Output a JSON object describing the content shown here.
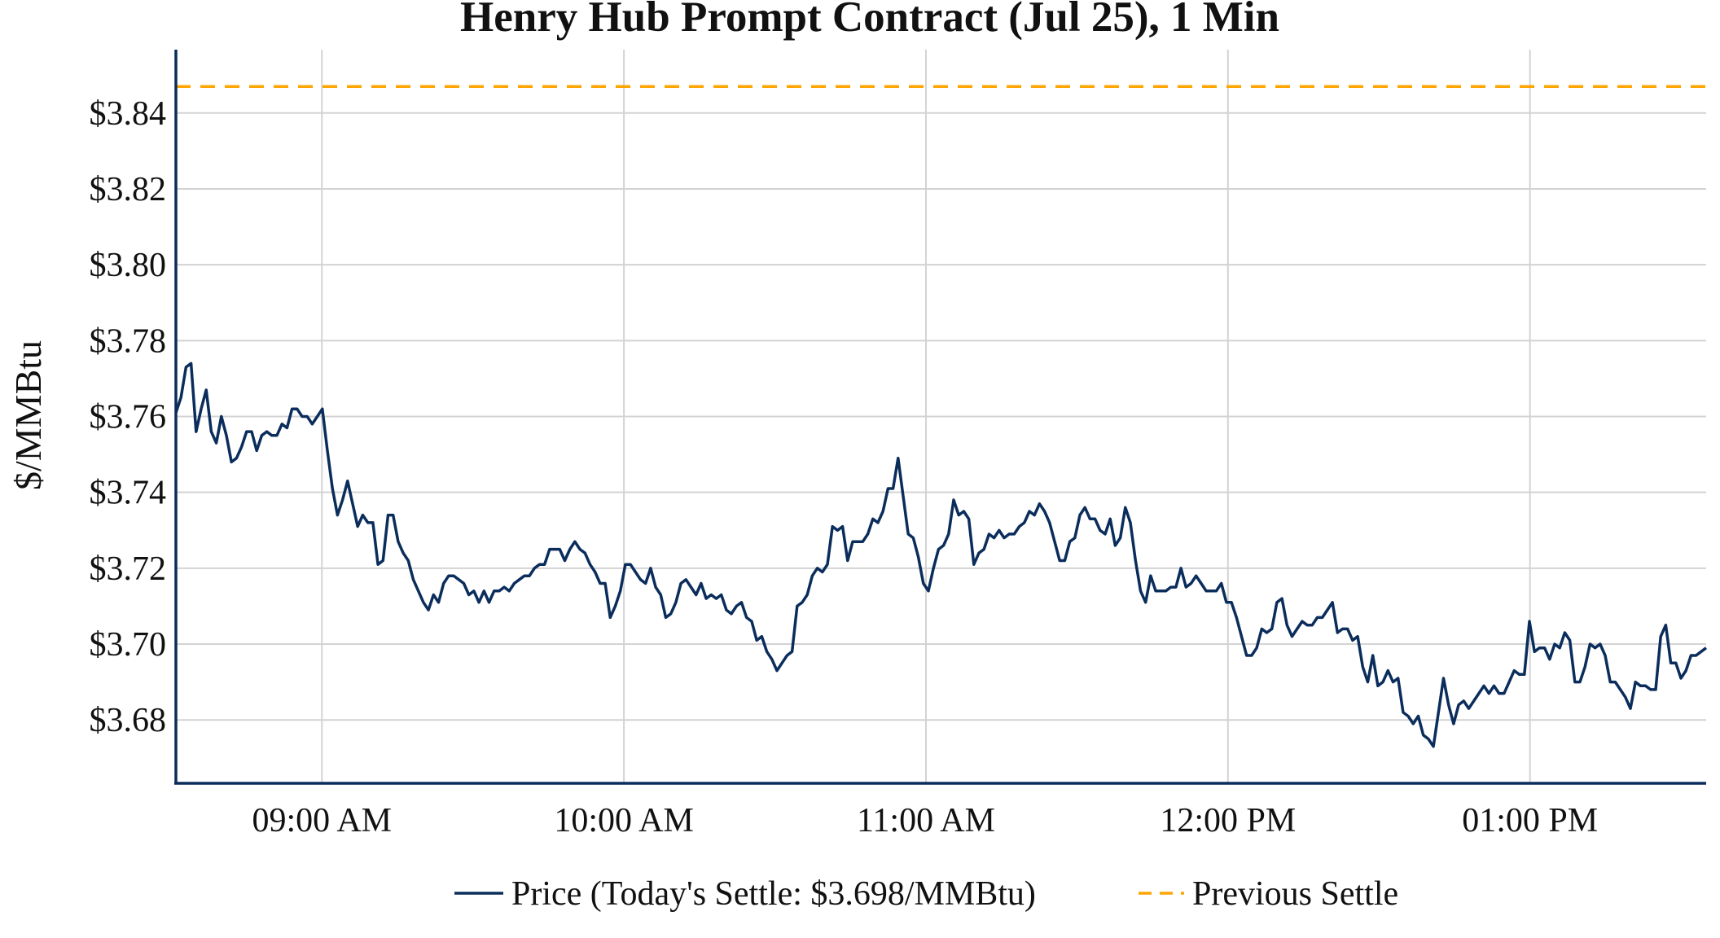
{
  "chart_data": {
    "type": "line",
    "title": "Henry Hub Prompt Contract (Jul 25), 1 Min",
    "xlabel": "",
    "ylabel": "$/MMBtu",
    "x_start": "08:31",
    "x_interval_minutes": 1,
    "xlim": [
      "08:31",
      "13:35"
    ],
    "ylim": [
      3.6633,
      3.8567
    ],
    "yticks": [
      3.68,
      3.7,
      3.72,
      3.74,
      3.76,
      3.78,
      3.8,
      3.82,
      3.84
    ],
    "ytick_labels": [
      "$3.68",
      "$3.70",
      "$3.72",
      "$3.74",
      "$3.76",
      "$3.78",
      "$3.80",
      "$3.82",
      "$3.84"
    ],
    "xticks": [
      "09:00",
      "10:00",
      "11:00",
      "12:00",
      "13:00"
    ],
    "xtick_labels": [
      "09:00 AM",
      "10:00 AM",
      "11:00 AM",
      "12:00 PM",
      "01:00 PM"
    ],
    "grid": true,
    "legend_position": "bottom",
    "series": [
      {
        "name": "Price (Today's Settle: $3.698/MMBtu)",
        "color": "#0b2d5c",
        "style": "solid",
        "values": [
          3.761,
          3.765,
          3.773,
          3.774,
          3.756,
          3.762,
          3.767,
          3.756,
          3.753,
          3.76,
          3.755,
          3.748,
          3.749,
          3.752,
          3.756,
          3.756,
          3.751,
          3.755,
          3.756,
          3.755,
          3.755,
          3.758,
          3.757,
          3.762,
          3.762,
          3.76,
          3.76,
          3.758,
          3.76,
          3.762,
          3.751,
          3.741,
          3.734,
          3.738,
          3.743,
          3.737,
          3.731,
          3.734,
          3.732,
          3.732,
          3.721,
          3.722,
          3.734,
          3.734,
          3.727,
          3.724,
          3.722,
          3.717,
          3.714,
          3.711,
          3.709,
          3.713,
          3.711,
          3.716,
          3.718,
          3.718,
          3.717,
          3.716,
          3.713,
          3.714,
          3.711,
          3.714,
          3.711,
          3.714,
          3.714,
          3.715,
          3.714,
          3.716,
          3.717,
          3.718,
          3.718,
          3.72,
          3.721,
          3.721,
          3.725,
          3.725,
          3.725,
          3.722,
          3.725,
          3.727,
          3.725,
          3.724,
          3.721,
          3.719,
          3.716,
          3.716,
          3.707,
          3.71,
          3.714,
          3.721,
          3.721,
          3.719,
          3.717,
          3.716,
          3.72,
          3.715,
          3.713,
          3.707,
          3.708,
          3.711,
          3.716,
          3.717,
          3.715,
          3.713,
          3.716,
          3.712,
          3.713,
          3.712,
          3.713,
          3.709,
          3.708,
          3.71,
          3.711,
          3.707,
          3.706,
          3.701,
          3.702,
          3.698,
          3.696,
          3.693,
          3.695,
          3.697,
          3.698,
          3.71,
          3.711,
          3.713,
          3.718,
          3.72,
          3.719,
          3.721,
          3.731,
          3.73,
          3.731,
          3.722,
          3.727,
          3.727,
          3.727,
          3.729,
          3.733,
          3.732,
          3.735,
          3.741,
          3.741,
          3.749,
          3.739,
          3.729,
          3.728,
          3.723,
          3.716,
          3.714,
          3.72,
          3.725,
          3.726,
          3.729,
          3.738,
          3.734,
          3.735,
          3.733,
          3.721,
          3.724,
          3.725,
          3.729,
          3.728,
          3.73,
          3.728,
          3.729,
          3.729,
          3.731,
          3.732,
          3.735,
          3.734,
          3.737,
          3.735,
          3.732,
          3.727,
          3.722,
          3.722,
          3.727,
          3.728,
          3.734,
          3.736,
          3.733,
          3.733,
          3.73,
          3.729,
          3.733,
          3.726,
          3.728,
          3.736,
          3.732,
          3.722,
          3.714,
          3.711,
          3.718,
          3.714,
          3.714,
          3.714,
          3.715,
          3.715,
          3.72,
          3.715,
          3.716,
          3.718,
          3.716,
          3.714,
          3.714,
          3.714,
          3.716,
          3.711,
          3.711,
          3.707,
          3.702,
          3.697,
          3.697,
          3.699,
          3.704,
          3.703,
          3.704,
          3.711,
          3.712,
          3.705,
          3.702,
          3.704,
          3.706,
          3.705,
          3.705,
          3.707,
          3.707,
          3.709,
          3.711,
          3.703,
          3.704,
          3.704,
          3.701,
          3.702,
          3.694,
          3.69,
          3.697,
          3.689,
          3.69,
          3.693,
          3.69,
          3.691,
          3.682,
          3.681,
          3.679,
          3.681,
          3.676,
          3.675,
          3.673,
          3.682,
          3.691,
          3.684,
          3.679,
          3.684,
          3.685,
          3.683,
          3.685,
          3.687,
          3.689,
          3.687,
          3.689,
          3.687,
          3.687,
          3.69,
          3.693,
          3.692,
          3.692,
          3.706,
          3.698,
          3.699,
          3.699,
          3.696,
          3.7,
          3.699,
          3.703,
          3.701,
          3.69,
          3.69,
          3.694,
          3.7,
          3.699,
          3.7,
          3.697,
          3.69,
          3.69,
          3.688,
          3.686,
          3.683,
          3.69,
          3.689,
          3.689,
          3.688,
          3.688,
          3.702,
          3.705,
          3.695,
          3.695,
          3.691,
          3.693,
          3.697,
          3.697,
          3.698,
          3.699
        ]
      },
      {
        "name": "Previous Settle",
        "color": "#ffa500",
        "style": "dashed",
        "value": 3.847
      }
    ]
  }
}
